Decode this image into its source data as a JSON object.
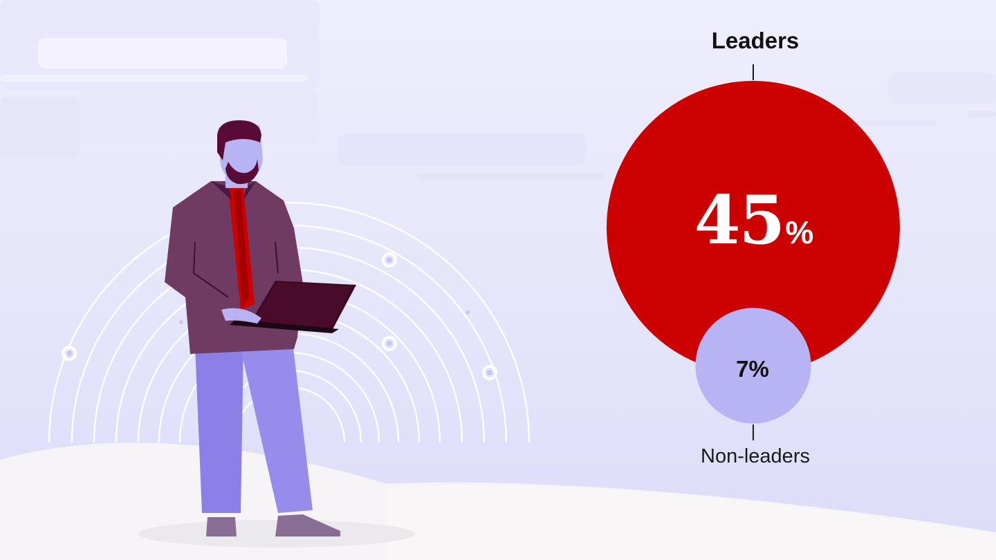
{
  "chart_data": {
    "type": "bubble",
    "categories": [
      "Leaders",
      "Non-leaders"
    ],
    "values": [
      45,
      7
    ],
    "value_labels": [
      "45",
      "7%"
    ],
    "percent_sign": "%",
    "colors": {
      "Leaders": "#cc0000",
      "Non-leaders": "#b8b3f3"
    },
    "title": "",
    "legend": "none"
  }
}
